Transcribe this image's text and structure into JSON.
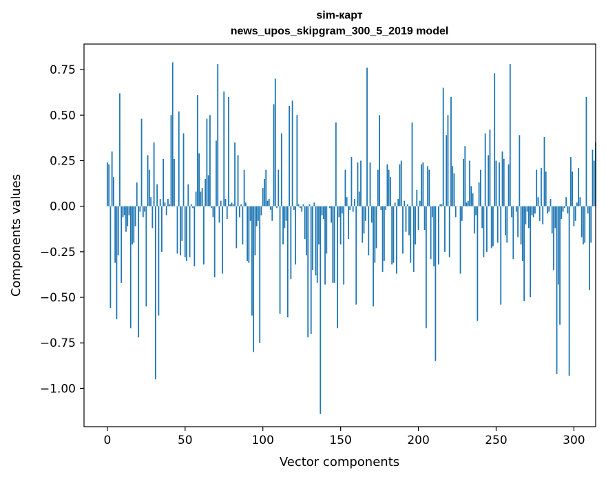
{
  "chart_data": {
    "type": "bar",
    "title": "sim-карт",
    "subtitle": "news_upos_skipgram_300_5_2019 model",
    "xlabel": "Vector components",
    "ylabel": "Components values",
    "xlim": [
      -15,
      314
    ],
    "ylim": [
      -1.21,
      0.89
    ],
    "xticks": [
      0,
      50,
      100,
      150,
      200,
      250,
      300
    ],
    "yticks": [
      0.75,
      0.5,
      0.25,
      0.0,
      -0.25,
      -0.5,
      -0.75,
      -1.0
    ],
    "ytick_labels": [
      "0.75",
      "0.50",
      "0.25",
      "0.00",
      "−0.25",
      "−0.50",
      "−0.75",
      "−1.00"
    ],
    "grid": false,
    "bar_color": "#1f77b4",
    "values": [
      0.24,
      0.23,
      -0.56,
      0.3,
      0.16,
      -0.31,
      -0.62,
      -0.27,
      0.62,
      -0.42,
      -0.06,
      -0.05,
      -0.14,
      -0.11,
      -0.05,
      -0.67,
      -0.21,
      -0.2,
      -0.11,
      0.13,
      -0.72,
      -0.03,
      0.48,
      -0.06,
      -0.03,
      -0.55,
      0.28,
      0.2,
      0.05,
      -0.12,
      0.35,
      -0.95,
      0.12,
      -0.6,
      0.04,
      -0.25,
      0.26,
      0.02,
      -0.05,
      0.04,
      0.01,
      0.5,
      0.79,
      0.26,
      0.0,
      -0.26,
      0.52,
      -0.27,
      -0.19,
      0.4,
      -0.28,
      -0.3,
      0.12,
      -0.28,
      0.01,
      -0.01,
      -0.33,
      0.08,
      0.61,
      0.29,
      0.08,
      0.1,
      -0.32,
      0.15,
      0.48,
      0.17,
      0.5,
      -0.01,
      -0.06,
      -0.39,
      0.36,
      0.78,
      -0.09,
      0.03,
      -0.37,
      0.63,
      0.04,
      -0.07,
      0.6,
      0.01,
      0.02,
      0.01,
      0.35,
      -0.23,
      0.28,
      -0.06,
      0.01,
      -0.21,
      0.2,
      0.02,
      -0.3,
      -0.31,
      -0.08,
      -0.6,
      -0.8,
      -0.27,
      -0.11,
      -0.08,
      -0.75,
      -0.05,
      0.1,
      0.15,
      0.2,
      0.03,
      0.04,
      -0.02,
      -0.08,
      0.56,
      0.7,
      -0.01,
      0.2,
      -0.59,
      0.4,
      -0.21,
      -0.12,
      -0.08,
      -0.61,
      0.55,
      -0.4,
      0.58,
      -0.02,
      -0.32,
      0.5,
      0.01,
      -0.01,
      -0.03,
      0.01,
      -0.18,
      -0.27,
      -0.72,
      0.01,
      -0.7,
      -0.35,
      0.02,
      -0.38,
      -0.42,
      -0.21,
      -1.14,
      -0.05,
      -0.07,
      -0.43,
      -0.26,
      0.0,
      -0.01,
      -0.09,
      -0.42,
      -0.42,
      0.46,
      -0.67,
      -0.06,
      -0.21,
      -0.04,
      -0.43,
      0.2,
      0.05,
      -0.18,
      -0.02,
      0.27,
      -0.03,
      0.04,
      -0.54,
      0.24,
      0.08,
      0.25,
      -0.2,
      -0.15,
      -0.08,
      0.76,
      -0.27,
      0.24,
      -0.09,
      -0.55,
      -0.31,
      -0.23,
      0.2,
      0.5,
      -0.02,
      -0.36,
      -0.3,
      -0.02,
      0.23,
      0.2,
      0.16,
      -0.32,
      -0.31,
      0.02,
      -0.37,
      0.04,
      0.23,
      0.25,
      -0.26,
      0.03,
      -0.14,
      0.01,
      -0.16,
      -0.31,
      0.46,
      -0.36,
      -0.21,
      0.09,
      -0.13,
      0.03,
      0.23,
      0.24,
      -0.13,
      -0.67,
      0.22,
      0.2,
      -0.29,
      -0.06,
      -0.33,
      -0.85,
      0.0,
      -0.32,
      0.01,
      0.01,
      0.65,
      -0.25,
      0.39,
      0.5,
      -0.28,
      0.6,
      0.22,
      0.18,
      -0.06,
      0.0,
      0.0,
      -0.37,
      -0.08,
      0.26,
      0.33,
      0.02,
      0.03,
      0.25,
      0.11,
      0.07,
      -0.15,
      -0.05,
      -0.63,
      0.13,
      0.2,
      -0.12,
      -0.28,
      0.4,
      -0.25,
      0.28,
      0.42,
      -0.23,
      -0.22,
      0.73,
      0.25,
      -0.2,
      0.24,
      -0.54,
      0.3,
      0.26,
      -0.16,
      -0.2,
      0.23,
      0.78,
      -0.06,
      -0.29,
      0.0,
      -0.03,
      -0.17,
      0.39,
      -0.21,
      -0.3,
      -0.52,
      -0.1,
      -0.03,
      -0.12,
      -0.5,
      -0.05,
      -0.06,
      -0.04,
      0.2,
      0.05,
      -0.08,
      0.21,
      -0.1,
      0.38,
      0.19,
      -0.04,
      -0.03,
      0.04,
      -0.15,
      -0.35,
      -0.12,
      -0.92,
      -0.43,
      -0.65,
      -0.07,
      -0.03,
      -0.01,
      0.05,
      -0.04,
      -0.93,
      0.27,
      0.19,
      -0.11,
      -0.08,
      0.02,
      0.21,
      0.05,
      -0.17,
      -0.21,
      -0.2,
      0.6,
      -0.04,
      -0.46,
      -0.2,
      0.31,
      0.25,
      0.35
    ]
  }
}
